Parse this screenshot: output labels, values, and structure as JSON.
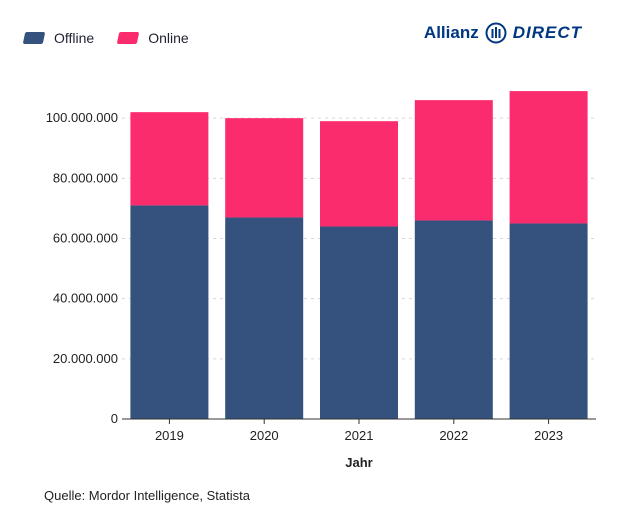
{
  "brand": {
    "logo_word_1": "Allianz",
    "logo_word_2": "DIRECT",
    "color": "#003781"
  },
  "legend": {
    "items": [
      {
        "label": "Offline",
        "color": "#34527d"
      },
      {
        "label": "Online",
        "color": "#fb2c6d"
      }
    ]
  },
  "source": "Quelle: Mordor Intelligence, Statista",
  "chart_data": {
    "type": "bar",
    "stacked": true,
    "categories": [
      "2019",
      "2020",
      "2021",
      "2022",
      "2023"
    ],
    "series": [
      {
        "name": "Offline",
        "color": "#34527d",
        "values": [
          71000000,
          67000000,
          64000000,
          66000000,
          65000000
        ]
      },
      {
        "name": "Online",
        "color": "#fb2c6d",
        "values": [
          31000000,
          33000000,
          35000000,
          40000000,
          44000000
        ]
      }
    ],
    "xlabel": "Jahr",
    "ylabel": "",
    "ylim": [
      0,
      120000000
    ],
    "yticks": [
      0,
      20000000,
      40000000,
      60000000,
      80000000,
      100000000
    ],
    "ytick_labels": [
      "0",
      "20.000.000",
      "40.000.000",
      "60.000.000",
      "80.000.000",
      "100.000.000"
    ],
    "grid": "horizontal-dashed",
    "legend_position": "top-left"
  }
}
